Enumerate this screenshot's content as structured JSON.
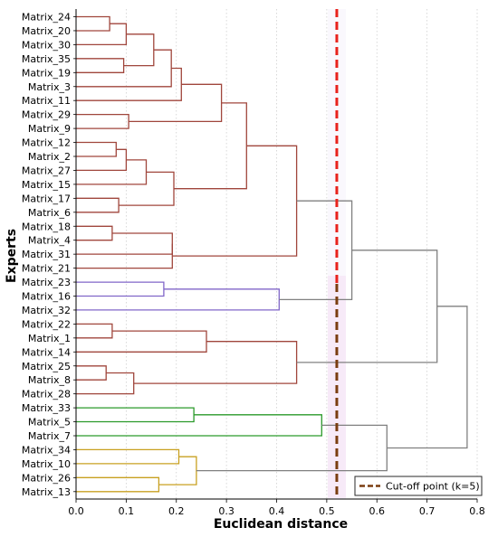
{
  "chart_data": {
    "type": "dendrogram",
    "title": "",
    "xlabel": "Euclidean distance",
    "ylabel": "Experts",
    "xlim": [
      0,
      0.8
    ],
    "x_ticks": [
      "0.0",
      "0.1",
      "0.2",
      "0.3",
      "0.4",
      "0.5",
      "0.6",
      "0.7",
      "0.8"
    ],
    "grid": "vertical dotted",
    "leaves": [
      "Matrix_24",
      "Matrix_20",
      "Matrix_30",
      "Matrix_35",
      "Matrix_19",
      "Matrix_3",
      "Matrix_11",
      "Matrix_29",
      "Matrix_9",
      "Matrix_12",
      "Matrix_2",
      "Matrix_27",
      "Matrix_15",
      "Matrix_17",
      "Matrix_6",
      "Matrix_18",
      "Matrix_4",
      "Matrix_31",
      "Matrix_21",
      "Matrix_23",
      "Matrix_16",
      "Matrix_32",
      "Matrix_22",
      "Matrix_1",
      "Matrix_14",
      "Matrix_25",
      "Matrix_8",
      "Matrix_28",
      "Matrix_33",
      "Matrix_5",
      "Matrix_7",
      "Matrix_34",
      "Matrix_10",
      "Matrix_26",
      "Matrix_13"
    ],
    "colors": {
      "cluster_brown": "#a0463c",
      "cluster_purple": "#8066c8",
      "cluster_green": "#2a9a2a",
      "cluster_gold": "#c8a020",
      "above_cut": "#808080",
      "red_line": "#e8221c",
      "cutoff_line": "#7a3d10"
    },
    "merges": [
      {
        "a": 0,
        "b": 1,
        "d": 0.067,
        "c": "cluster_brown"
      },
      {
        "a": 3,
        "b": 4,
        "d": 0.095,
        "c": "cluster_brown"
      },
      {
        "a": 35,
        "b": 2,
        "d": 0.1,
        "c": "cluster_brown"
      },
      {
        "a": 37,
        "b": 36,
        "d": 0.155,
        "c": "cluster_brown"
      },
      {
        "a": 38,
        "b": 5,
        "d": 0.19,
        "c": "cluster_brown"
      },
      {
        "a": 39,
        "b": 6,
        "d": 0.21,
        "c": "cluster_brown"
      },
      {
        "a": 7,
        "b": 8,
        "d": 0.105,
        "c": "cluster_brown"
      },
      {
        "a": 40,
        "b": 41,
        "d": 0.29,
        "c": "cluster_brown"
      },
      {
        "a": 9,
        "b": 10,
        "d": 0.08,
        "c": "cluster_brown"
      },
      {
        "a": 43,
        "b": 11,
        "d": 0.1,
        "c": "cluster_brown"
      },
      {
        "a": 44,
        "b": 12,
        "d": 0.14,
        "c": "cluster_brown"
      },
      {
        "a": 13,
        "b": 14,
        "d": 0.085,
        "c": "cluster_brown"
      },
      {
        "a": 45,
        "b": 46,
        "d": 0.195,
        "c": "cluster_brown"
      },
      {
        "a": 42,
        "b": 47,
        "d": 0.34,
        "c": "cluster_brown"
      },
      {
        "a": 15,
        "b": 16,
        "d": 0.072,
        "c": "cluster_brown"
      },
      {
        "a": 49,
        "b": 17,
        "d": 0.192,
        "c": "cluster_brown"
      },
      {
        "a": 50,
        "b": 18,
        "d": 0.192,
        "c": "cluster_brown"
      },
      {
        "a": 48,
        "b": 51,
        "d": 0.44,
        "c": "cluster_brown"
      },
      {
        "a": 19,
        "b": 20,
        "d": 0.175,
        "c": "cluster_purple"
      },
      {
        "a": 53,
        "b": 21,
        "d": 0.405,
        "c": "cluster_purple"
      },
      {
        "a": 52,
        "b": 54,
        "d": 0.55,
        "c": "above_cut"
      },
      {
        "a": 22,
        "b": 23,
        "d": 0.072,
        "c": "cluster_brown"
      },
      {
        "a": 56,
        "b": 24,
        "d": 0.26,
        "c": "cluster_brown"
      },
      {
        "a": 25,
        "b": 26,
        "d": 0.06,
        "c": "cluster_brown"
      },
      {
        "a": 58,
        "b": 27,
        "d": 0.115,
        "c": "cluster_brown"
      },
      {
        "a": 57,
        "b": 59,
        "d": 0.44,
        "c": "cluster_brown"
      },
      {
        "a": 55,
        "b": 60,
        "d": 0.72,
        "c": "above_cut"
      },
      {
        "a": 28,
        "b": 29,
        "d": 0.235,
        "c": "cluster_green"
      },
      {
        "a": 62,
        "b": 30,
        "d": 0.49,
        "c": "cluster_green"
      },
      {
        "a": 31,
        "b": 32,
        "d": 0.205,
        "c": "cluster_gold"
      },
      {
        "a": 33,
        "b": 34,
        "d": 0.165,
        "c": "cluster_gold"
      },
      {
        "a": 64,
        "b": 65,
        "d": 0.24,
        "c": "cluster_gold"
      },
      {
        "a": 63,
        "b": 66,
        "d": 0.62,
        "c": "above_cut"
      },
      {
        "a": 61,
        "b": 67,
        "d": 0.78,
        "c": "above_cut"
      }
    ],
    "threshold_line": {
      "x": 0.52
    },
    "cutoff_line": {
      "x": 0.52,
      "label": "Cut-off point (k=5)"
    },
    "legend": {
      "position": "bottom-right",
      "entries": [
        "Cut-off point (k=5)"
      ]
    }
  }
}
